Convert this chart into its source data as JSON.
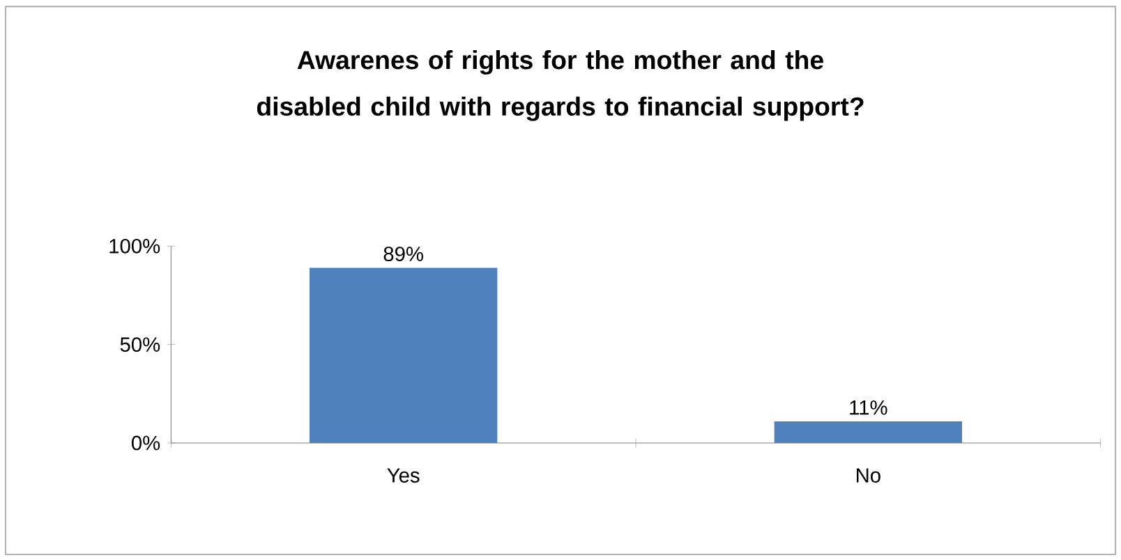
{
  "chart_data": {
    "type": "bar",
    "title": "Awarenes of rights for the mother and the disabled child with regards to financial support?",
    "categories": [
      "Yes",
      "No"
    ],
    "values": [
      89,
      11
    ],
    "value_labels": [
      "89%",
      "11%"
    ],
    "color": "#4f81bd",
    "ylim": [
      0,
      100
    ],
    "yticks": [
      {
        "value": 0,
        "label": "0%"
      },
      {
        "value": 50,
        "label": "50%"
      },
      {
        "value": 100,
        "label": "100%"
      }
    ],
    "grid": false
  }
}
